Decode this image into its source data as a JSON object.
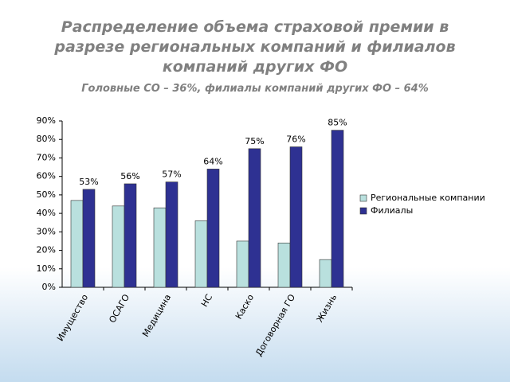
{
  "chart_data": {
    "type": "bar",
    "title": "Распределение объема страховой премии в разрезе региональных компаний и филиалов компаний других ФО",
    "subtitle": "Головные СО – 36%, филиалы  компаний других ФО – 64%",
    "categories": [
      "Имущество",
      "ОСАГО",
      "Медицина",
      "НС",
      "Каско",
      "Договорная ГО",
      "Жизнь"
    ],
    "series": [
      {
        "name": "Региональные компании",
        "color": "#b9e0de",
        "values": [
          47,
          44,
          43,
          36,
          25,
          24,
          15
        ]
      },
      {
        "name": "Филиалы",
        "color": "#2e3192",
        "values": [
          53,
          56,
          57,
          64,
          75,
          76,
          85
        ],
        "value_labels": [
          "53%",
          "56%",
          "57%",
          "64%",
          "75%",
          "76%",
          "85%"
        ]
      }
    ],
    "ylim": [
      0,
      90
    ],
    "yticks": [
      {
        "value": 0,
        "label": "0%"
      },
      {
        "value": 10,
        "label": "10%"
      },
      {
        "value": 20,
        "label": "20%"
      },
      {
        "value": 30,
        "label": "30%"
      },
      {
        "value": 40,
        "label": "40%"
      },
      {
        "value": 50,
        "label": "50%"
      },
      {
        "value": 60,
        "label": "60%"
      },
      {
        "value": 70,
        "label": "70%"
      },
      {
        "value": 80,
        "label": "80%"
      },
      {
        "value": 90,
        "label": "90%"
      }
    ],
    "legend": "right"
  }
}
